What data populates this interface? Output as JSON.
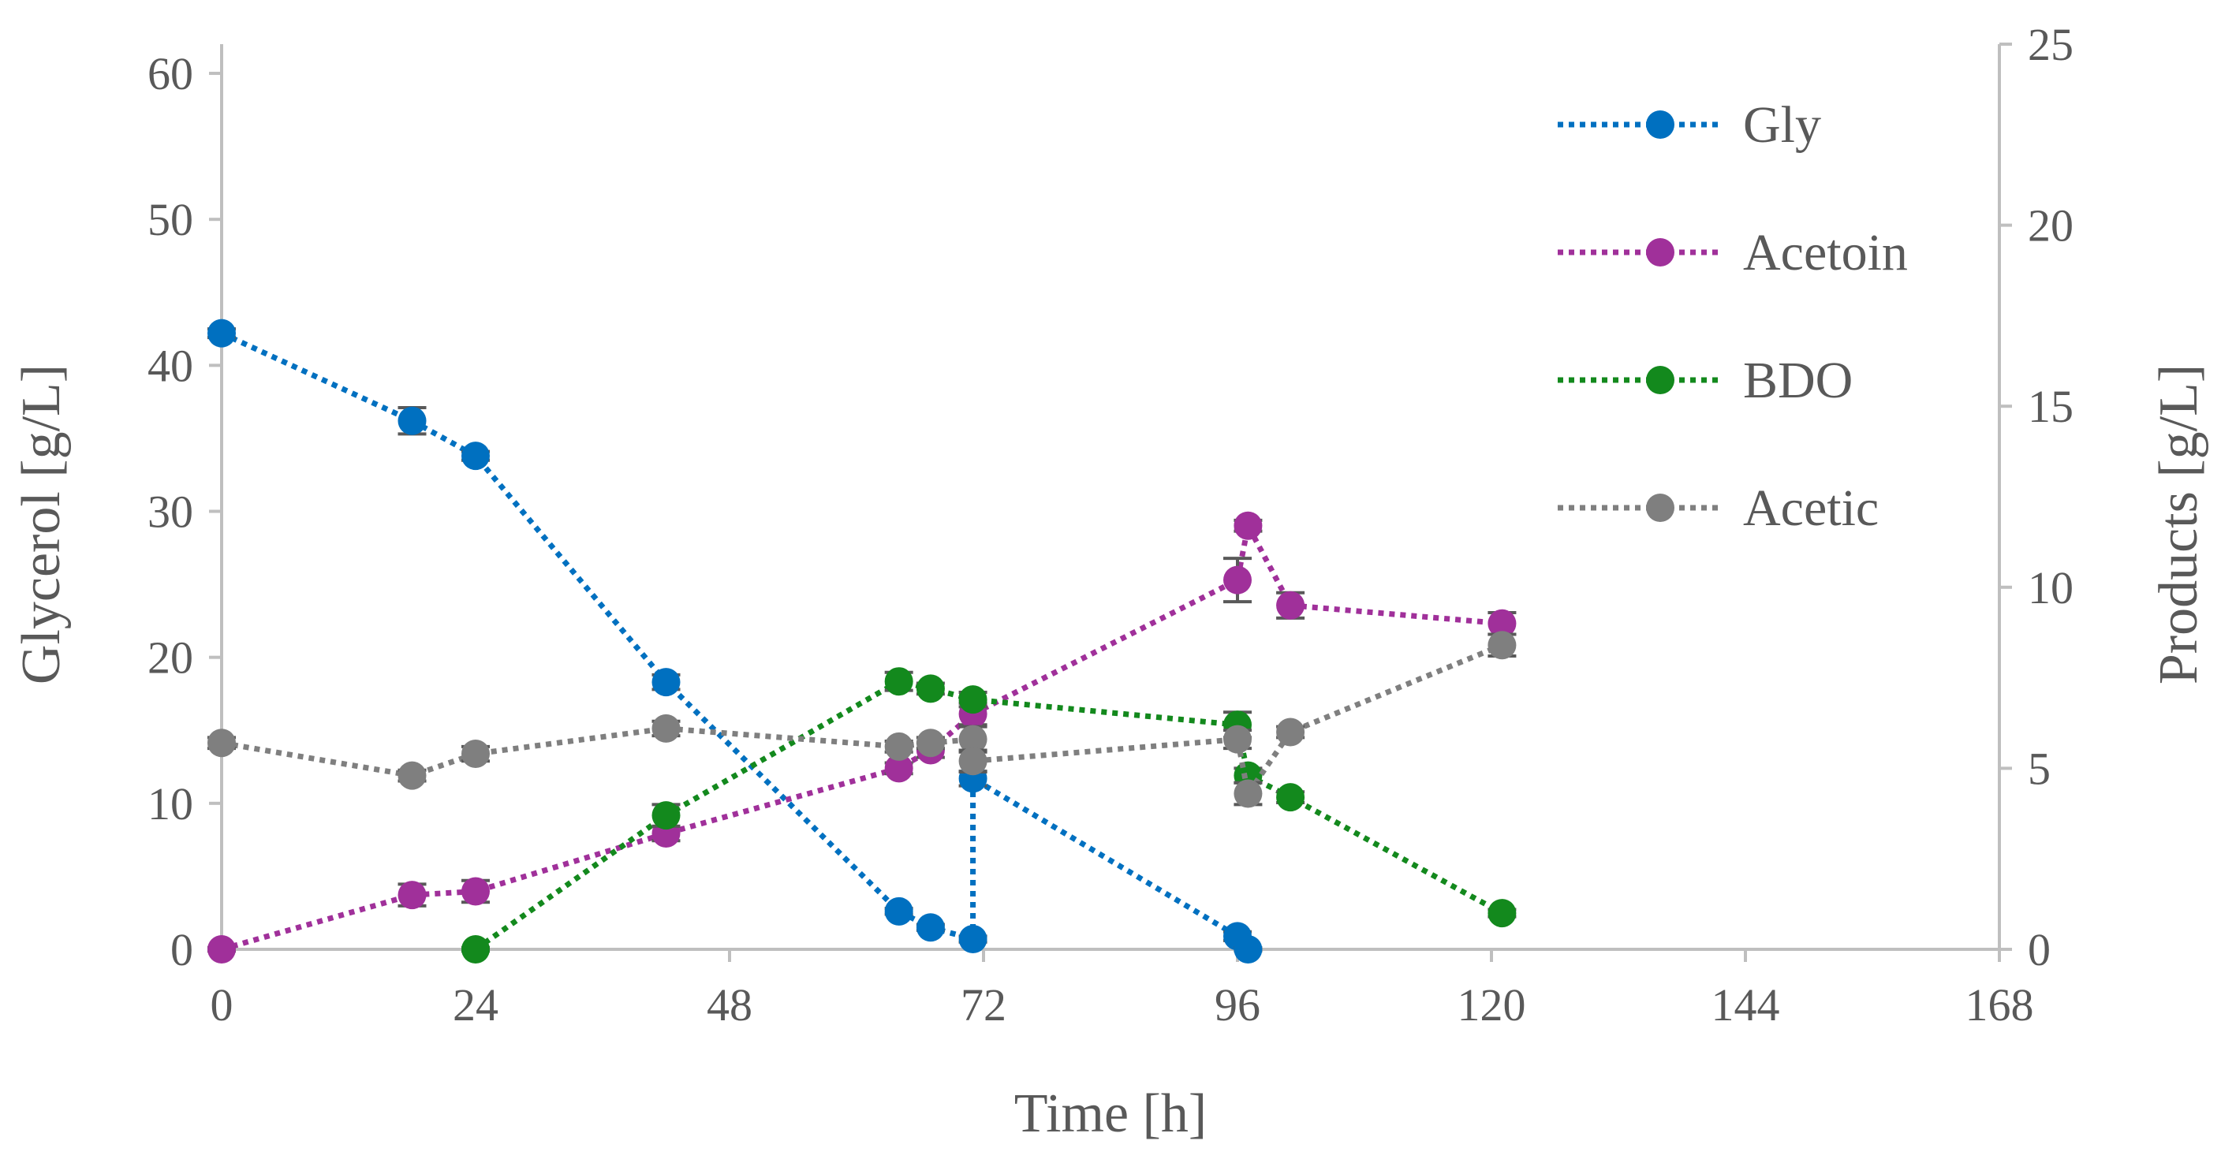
{
  "chart_data": {
    "type": "line",
    "xlabel": "Time [h]",
    "ylabel": "Glycerol [g/L]",
    "y2label": "Products [g/L]",
    "xlim": [
      0,
      168
    ],
    "ylim": [
      0,
      62
    ],
    "y2lim": [
      0,
      25
    ],
    "xticks": [
      0,
      24,
      48,
      72,
      96,
      120,
      144,
      168
    ],
    "yticks": [
      0,
      10,
      20,
      30,
      40,
      50,
      60
    ],
    "y2ticks": [
      0,
      5,
      10,
      15,
      20,
      25
    ],
    "line_style": "dotted",
    "legend_position": "top-right",
    "series": [
      {
        "name": "Gly",
        "axis": "left",
        "color": "#0070C0",
        "x": [
          0,
          18,
          24,
          42,
          64,
          67,
          71,
          71,
          96,
          97
        ],
        "y": [
          42.2,
          36.2,
          33.8,
          18.3,
          2.6,
          1.5,
          0.7,
          11.7,
          0.9,
          0
        ],
        "err": [
          0.3,
          0.9,
          0.3,
          0.5,
          0.2,
          0.2,
          0.2,
          0.5,
          0.3,
          0.1
        ]
      },
      {
        "name": "Acetoin",
        "axis": "right",
        "color": "#A0309A",
        "x": [
          0,
          18,
          24,
          42,
          64,
          67,
          71,
          96,
          97,
          101,
          121
        ],
        "y": [
          0,
          1.5,
          1.6,
          3.2,
          5.0,
          5.5,
          6.5,
          10.2,
          11.7,
          9.5,
          9.0
        ],
        "err": [
          0.05,
          0.3,
          0.3,
          0.2,
          0.15,
          0.2,
          0.3,
          0.6,
          0.15,
          0.35,
          0.3
        ]
      },
      {
        "name": "BDO",
        "axis": "right",
        "color": "#13891D",
        "x": [
          24,
          42,
          64,
          67,
          71,
          96,
          97,
          101,
          121
        ],
        "y": [
          0,
          3.7,
          7.4,
          7.2,
          6.9,
          6.2,
          4.8,
          4.2,
          1.0
        ],
        "err": [
          0.05,
          0.3,
          0.25,
          0.15,
          0.2,
          0.35,
          0.2,
          0.15,
          0.1
        ]
      },
      {
        "name": "Acetic",
        "axis": "right",
        "color": "#7F7F7F",
        "x": [
          0,
          18,
          24,
          42,
          64,
          67,
          71,
          71,
          96,
          97,
          101,
          121
        ],
        "y": [
          5.7,
          4.8,
          5.4,
          6.1,
          5.6,
          5.7,
          5.8,
          5.2,
          5.8,
          4.3,
          6.0,
          8.4
        ],
        "err": [
          0.15,
          0.15,
          0.2,
          0.2,
          0.15,
          0.15,
          0.35,
          0.3,
          0.25,
          0.3,
          0.15,
          0.3
        ]
      }
    ]
  }
}
